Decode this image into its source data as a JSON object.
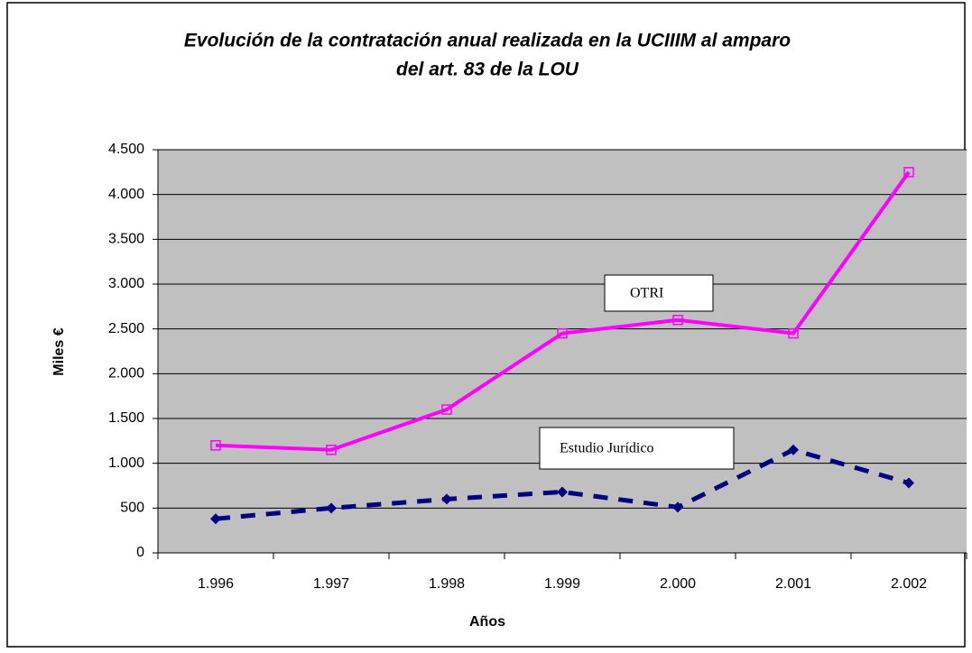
{
  "chart_data": {
    "type": "line",
    "title": [
      "Evolución de la contratación anual realizada en la UCIIIM al amparo",
      "del art. 83 de la LOU"
    ],
    "xlabel": "Años",
    "ylabel": "Miles €",
    "categories": [
      "1.996",
      "1.997",
      "1.998",
      "1.999",
      "2.000",
      "2.001",
      "2.002"
    ],
    "series": [
      {
        "name": "OTRI",
        "color": "#ff00ff",
        "marker": "square",
        "dash": false,
        "values": [
          1200,
          1150,
          1600,
          2450,
          2600,
          2450,
          4250
        ]
      },
      {
        "name": "Estudio Jurídico",
        "color": "#000080",
        "marker": "diamond",
        "dash": true,
        "values": [
          380,
          500,
          600,
          680,
          510,
          1150,
          780
        ]
      }
    ],
    "ylim": [
      0,
      4500
    ],
    "yticks": [
      0,
      500,
      {
        "value": 1000,
        "label": "1.000"
      },
      {
        "value": 1500,
        "label": "1.500"
      },
      {
        "value": 2000,
        "label": "2.000"
      },
      {
        "value": 2500,
        "label": "2.500"
      },
      {
        "value": 3000,
        "label": "3.000"
      },
      {
        "value": 3500,
        "label": "3.500"
      },
      {
        "value": 4000,
        "label": "4.000"
      },
      {
        "value": 4500,
        "label": "4.500"
      }
    ],
    "grid": true
  }
}
